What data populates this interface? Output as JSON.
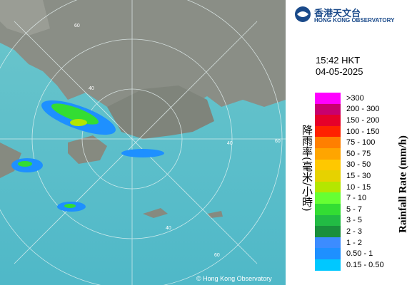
{
  "header": {
    "title_zh": "香港天文台",
    "title_en": "HONG KONG OBSERVATORY"
  },
  "time": "15:42 HKT",
  "date": "04-05-2025",
  "legend": {
    "title_zh": "降雨率(毫米/小時)",
    "title_en": "Rainfall Rate (mm/h)",
    "items": [
      {
        "label": ">300",
        "color": "#ff00ff"
      },
      {
        "label": "200 - 300",
        "color": "#c8006e"
      },
      {
        "label": "150 - 200",
        "color": "#e6002a"
      },
      {
        "label": "100 - 150",
        "color": "#ff2200"
      },
      {
        "label": "75 - 100",
        "color": "#ff7f00"
      },
      {
        "label": "50 - 75",
        "color": "#ffa500"
      },
      {
        "label": "30 - 50",
        "color": "#ffc800"
      },
      {
        "label": "15 - 30",
        "color": "#e6d200"
      },
      {
        "label": "10 - 15",
        "color": "#b4e600"
      },
      {
        "label": "7 - 10",
        "color": "#66ff33"
      },
      {
        "label": "5 - 7",
        "color": "#33dd33"
      },
      {
        "label": "3 - 5",
        "color": "#22bb44"
      },
      {
        "label": "2 - 3",
        "color": "#1a8f3c"
      },
      {
        "label": "1 - 2",
        "color": "#3c8cff"
      },
      {
        "label": "0.50 - 1",
        "color": "#1e90ff"
      },
      {
        "label": "0.15 - 0.50",
        "color": "#00c8ff"
      }
    ]
  },
  "ring_labels": [
    "60",
    "40",
    "60",
    "40",
    "40",
    "60"
  ],
  "copyright": "© Hong Kong Observatory"
}
